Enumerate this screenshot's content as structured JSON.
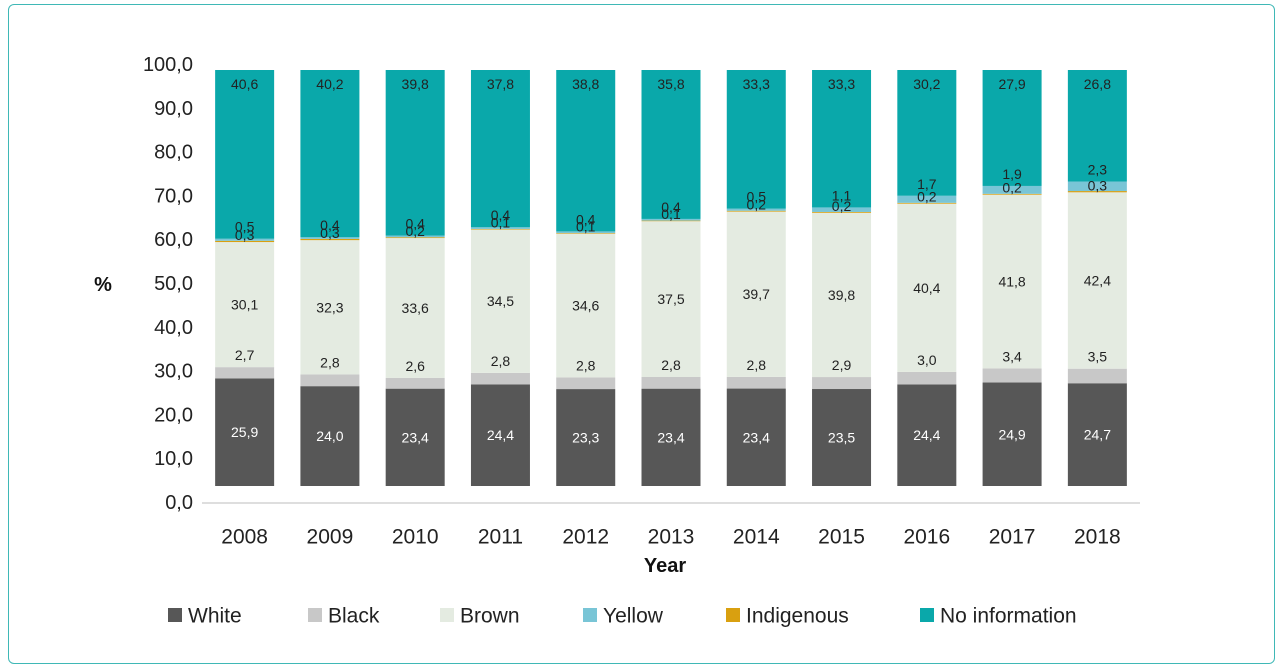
{
  "chart_data": {
    "type": "bar",
    "stacked": true,
    "xlabel": "Year",
    "ylabel": "%",
    "ylim": [
      0,
      100
    ],
    "yticks": [
      "0,0",
      "10,0",
      "20,0",
      "30,0",
      "40,0",
      "50,0",
      "60,0",
      "70,0",
      "80,0",
      "90,0",
      "100,0"
    ],
    "grid": false,
    "legend_position": "bottom",
    "categories": [
      "2008",
      "2009",
      "2010",
      "2011",
      "2012",
      "2013",
      "2014",
      "2015",
      "2016",
      "2017",
      "2018"
    ],
    "series": [
      {
        "name": "White",
        "color": "#575757",
        "values": [
          25.9,
          24.0,
          23.4,
          24.4,
          23.3,
          23.4,
          23.4,
          23.5,
          24.4,
          24.9,
          24.7
        ],
        "labels": [
          "25,9",
          "24,0",
          "23,4",
          "24,4",
          "23,3",
          "23,4",
          "23,4",
          "23,5",
          "24,4",
          "24,9",
          "24,7"
        ],
        "label_color": "#ffffff"
      },
      {
        "name": "Black",
        "color": "#c8c8c8",
        "values": [
          2.7,
          2.8,
          2.6,
          2.8,
          2.8,
          2.8,
          2.8,
          2.9,
          3.0,
          3.4,
          3.5
        ],
        "labels": [
          "2,7",
          "2,8",
          "2,6",
          "2,8",
          "2,8",
          "2,8",
          "2,8",
          "2,9",
          "3,0",
          "3,4",
          "3,5"
        ],
        "label_color": "#222222"
      },
      {
        "name": "Brown",
        "color": "#e4ebe1",
        "values": [
          30.1,
          32.3,
          33.6,
          34.5,
          34.6,
          37.5,
          39.7,
          39.8,
          40.4,
          41.8,
          42.4
        ],
        "labels": [
          "30,1",
          "32,3",
          "33,6",
          "34,5",
          "34,6",
          "37,5",
          "39,7",
          "39,8",
          "40,4",
          "41,8",
          "42,4"
        ],
        "label_color": "#222222"
      },
      {
        "name": "Indigenous",
        "color": "#d9a010",
        "values": [
          0.3,
          0.3,
          0.2,
          0.1,
          0.1,
          0.1,
          0.2,
          0.2,
          0.2,
          0.2,
          0.3
        ],
        "labels": [
          "0,3",
          "0,3",
          "0,2",
          "0,1",
          "0,1",
          "0,1",
          "0,2",
          "0,2",
          "0,2",
          "0,2",
          "0,3"
        ],
        "label_color": "#222222"
      },
      {
        "name": "Yellow",
        "color": "#79c5d6",
        "values": [
          0.5,
          0.4,
          0.4,
          0.4,
          0.4,
          0.4,
          0.5,
          1.1,
          1.7,
          1.9,
          2.3
        ],
        "labels": [
          "0,5",
          "0,4",
          "0,4",
          "0,4",
          "0,4",
          "0,4",
          "0,5",
          "1,1",
          "1,7",
          "1,9",
          "2,3"
        ],
        "label_color": "#222222"
      },
      {
        "name": "No information",
        "color": "#0aa8aa",
        "values": [
          40.6,
          40.2,
          39.8,
          37.8,
          38.8,
          35.8,
          33.3,
          33.3,
          30.2,
          27.9,
          26.8
        ],
        "labels": [
          "40,6",
          "40,2",
          "39,8",
          "37,8",
          "38,8",
          "35,8",
          "33,3",
          "33,3",
          "30,2",
          "27,9",
          "26,8"
        ],
        "label_color": "#222222"
      }
    ],
    "legend_order": [
      "White",
      "Black",
      "Brown",
      "Yellow",
      "Indigenous",
      "No information"
    ]
  }
}
